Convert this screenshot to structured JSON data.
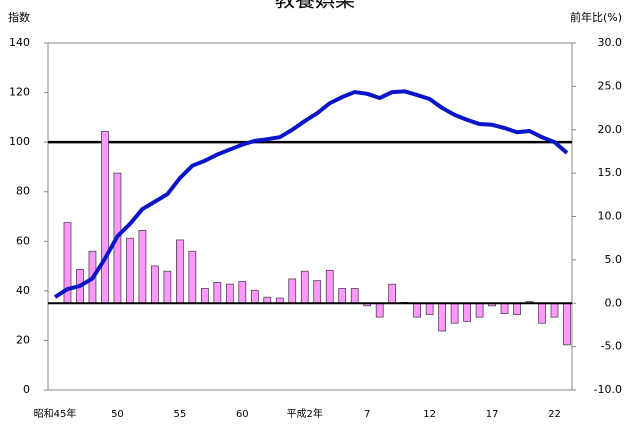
{
  "chart_data": {
    "type": "bar-line",
    "title": "教養娯楽",
    "y_label": "指数",
    "y2_label": "前年比(%)",
    "categories": [
      "昭和45年",
      null,
      null,
      null,
      null,
      "50",
      null,
      null,
      null,
      null,
      "55",
      null,
      null,
      null,
      null,
      "60",
      null,
      null,
      null,
      null,
      "平成2年",
      null,
      null,
      null,
      null,
      "7",
      null,
      null,
      null,
      null,
      "12",
      null,
      null,
      null,
      null,
      "17",
      null,
      null,
      null,
      null,
      "22",
      null
    ],
    "series": [
      {
        "type": "bar",
        "axis": "y2",
        "color": "#ff99ff",
        "values": [
          null,
          9.3,
          3.9,
          6.0,
          19.8,
          15.0,
          7.5,
          8.4,
          4.3,
          3.7,
          7.3,
          6.0,
          1.7,
          2.4,
          2.2,
          2.5,
          1.5,
          0.7,
          0.6,
          2.8,
          3.7,
          2.6,
          3.8,
          1.7,
          1.7,
          -0.3,
          -1.6,
          2.2,
          0.1,
          -1.6,
          -1.3,
          -3.2,
          -2.3,
          -2.1,
          -1.6,
          -0.3,
          -1.2,
          -1.3,
          0.2,
          -2.3,
          -1.6,
          -4.8
        ]
      },
      {
        "type": "line",
        "axis": "y",
        "color": "#0a14c8",
        "values": [
          37.5,
          40.7,
          42,
          45,
          53,
          62,
          67,
          73,
          76,
          79,
          85.5,
          90.5,
          92.5,
          95,
          97,
          99,
          100.5,
          101.2,
          102,
          105,
          108.5,
          111.7,
          115.7,
          118.2,
          120.2,
          119.5,
          117.8,
          120.2,
          120.5,
          119,
          117.4,
          113.8,
          111,
          109,
          107.3,
          107,
          105.7,
          104,
          104.5,
          102,
          100,
          95.6
        ]
      }
    ],
    "ylim": [
      0,
      140
    ],
    "yticks": [
      0,
      20,
      40,
      60,
      80,
      100,
      120,
      140
    ],
    "y2lim": [
      -10,
      30
    ],
    "y2ticks": [
      {
        "value": -10,
        "label": "-10.0"
      },
      {
        "value": -5,
        "label": "-5.0"
      },
      {
        "value": 0,
        "label": "0.0"
      },
      {
        "value": 5,
        "label": "5.0"
      },
      {
        "value": 10,
        "label": "10.0"
      },
      {
        "value": 15,
        "label": "15.0"
      },
      {
        "value": 20,
        "label": "20.0"
      },
      {
        "value": 25,
        "label": "25.0"
      },
      {
        "value": 30,
        "label": "30.0"
      }
    ],
    "reference_line": 100,
    "grid": false
  }
}
